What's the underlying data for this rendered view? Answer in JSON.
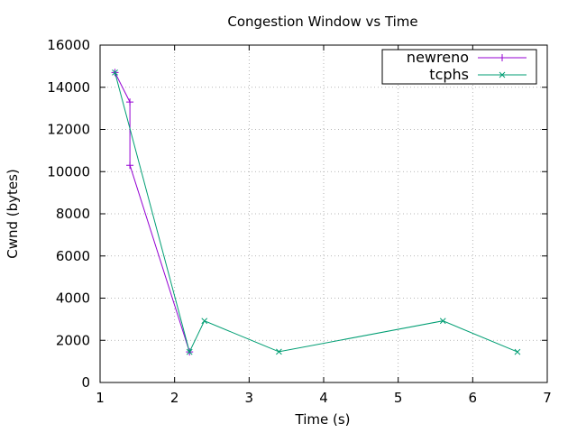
{
  "chart_data": {
    "type": "line",
    "title": "Congestion Window vs Time",
    "xlabel": "Time (s)",
    "ylabel": "Cwnd (bytes)",
    "xlim": [
      1,
      7
    ],
    "ylim": [
      0,
      16000
    ],
    "xticks": [
      1,
      2,
      3,
      4,
      5,
      6,
      7
    ],
    "yticks": [
      0,
      2000,
      4000,
      6000,
      8000,
      10000,
      12000,
      14000,
      16000
    ],
    "grid": true,
    "legend_position": "top-right",
    "series": [
      {
        "name": "newreno",
        "color": "#9400d3",
        "marker": "plus",
        "points": [
          [
            1.2,
            14700
          ],
          [
            1.4,
            13300
          ],
          [
            1.4,
            10300
          ],
          [
            2.2,
            1450
          ]
        ]
      },
      {
        "name": "tcphs",
        "color": "#009e73",
        "marker": "cross",
        "points": [
          [
            1.2,
            14700
          ],
          [
            2.2,
            1450
          ],
          [
            2.4,
            2920
          ],
          [
            3.4,
            1460
          ],
          [
            5.6,
            2920
          ],
          [
            6.6,
            1450
          ]
        ]
      }
    ]
  }
}
